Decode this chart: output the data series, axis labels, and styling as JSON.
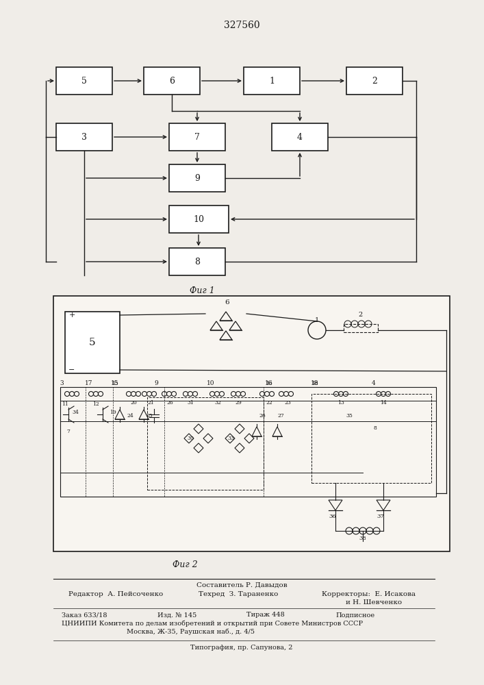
{
  "title": "327560",
  "fig1_label": "Фиг 1",
  "fig2_label": "Фиг 2",
  "bg_color": "#f0ede8",
  "box_color": "#ffffff",
  "line_color": "#1a1a1a",
  "footer_composer": "Составитель Р. Давыдов",
  "footer_editor": "Редактор  А. Пейсоченко",
  "footer_techred": "Техред  З. Тараненко",
  "footer_correctors": "Корректоры:  Е. Исакова",
  "footer_correctors2": "и Н. Шевченко",
  "footer_zakaz": "Заказ 633/18",
  "footer_izd": "Изд. № 145",
  "footer_tirazh": "Тираж 448",
  "footer_podp": "Подписное",
  "footer_cniipi": "ЦНИИПИ Комитета по делам изобретений и открытий при Совете Министров СССР",
  "footer_addr": "Москва, Ж-35, Раушская наб., д. 4/5",
  "footer_tip": "Типография, пр. Сапунова, 2"
}
